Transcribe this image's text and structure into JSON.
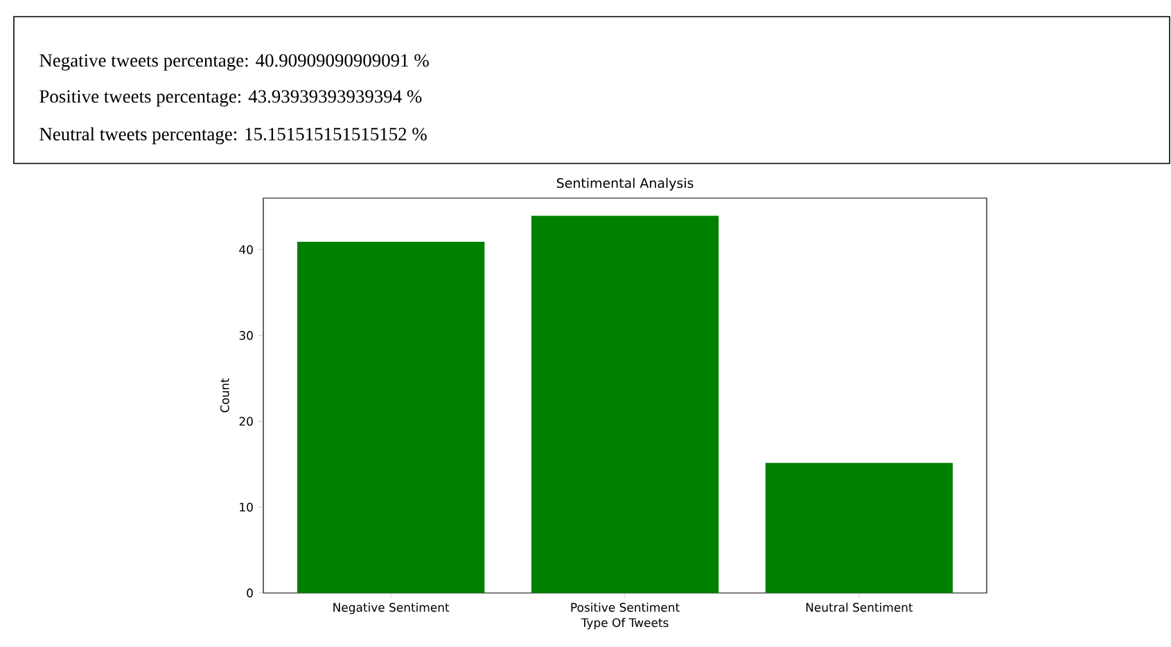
{
  "chart_data": {
    "type": "bar",
    "title": "Sentimental Analysis",
    "xlabel": "Type Of Tweets",
    "ylabel": "Count",
    "categories": [
      "Negative Sentiment",
      "Positive Sentiment",
      "Neutral Sentiment"
    ],
    "values": [
      40.90909090909091,
      43.93939393939394,
      15.151515151515152
    ],
    "color": "#008000",
    "ylim": [
      0,
      46
    ],
    "yticks": [
      0,
      10,
      20,
      30,
      40
    ],
    "annotations": [
      "Negative tweets percentage: 40.90909090909091 %",
      "Positive tweets percentage: 43.93939393939394 %",
      "Neutral tweets percentage: 15.151515151515152 %"
    ]
  }
}
